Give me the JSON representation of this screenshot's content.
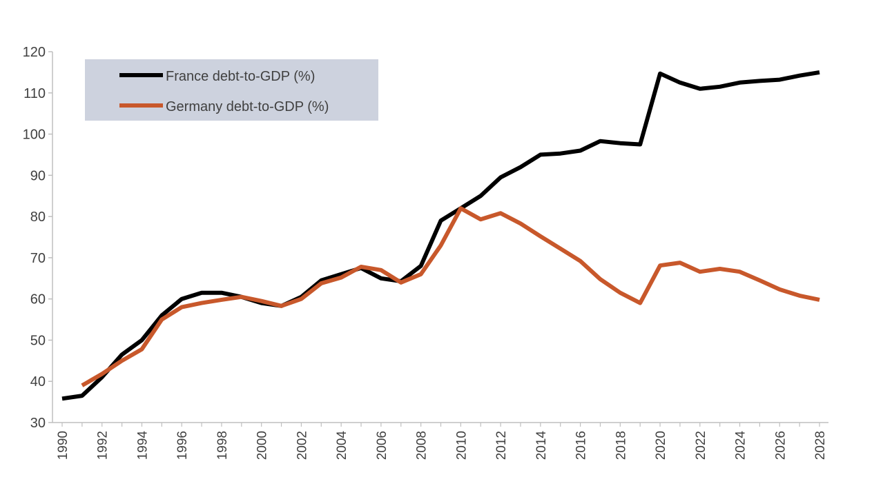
{
  "chart_data": {
    "type": "line",
    "title": "",
    "xlabel": "",
    "ylabel": "",
    "ylim": [
      30,
      120
    ],
    "yticks": [
      30,
      40,
      50,
      60,
      70,
      80,
      90,
      100,
      110,
      120
    ],
    "xlim": [
      1990,
      2028
    ],
    "xticks": [
      "1990",
      "1992",
      "1994",
      "1996",
      "1998",
      "2000",
      "2002",
      "2004",
      "2006",
      "2008",
      "2010",
      "2012",
      "2014",
      "2016",
      "2018",
      "2020",
      "2022",
      "2024",
      "2026",
      "2028"
    ],
    "grid": false,
    "legend": {
      "placement": "top-left",
      "background": "#cdd2de"
    },
    "series": [
      {
        "name": "France debt-to-GDP (%)",
        "color": "#000000",
        "x": [
          1990,
          1991,
          1992,
          1993,
          1994,
          1995,
          1996,
          1997,
          1998,
          1999,
          2000,
          2001,
          2002,
          2003,
          2004,
          2005,
          2006,
          2007,
          2008,
          2009,
          2010,
          2011,
          2012,
          2013,
          2014,
          2015,
          2016,
          2017,
          2018,
          2019,
          2020,
          2021,
          2022,
          2023,
          2024,
          2025,
          2026,
          2027,
          2028
        ],
        "values": [
          35.8,
          36.5,
          41,
          46.5,
          50,
          56,
          60,
          61.5,
          61.5,
          60.5,
          59,
          58.3,
          60.5,
          64.5,
          66,
          67.5,
          65,
          64.3,
          68,
          79,
          82,
          85,
          89.5,
          92,
          95,
          95.3,
          96,
          98.3,
          97.8,
          97.5,
          114.7,
          112.5,
          111,
          111.5,
          112.5,
          112.9,
          113.2,
          114.2,
          115
        ]
      },
      {
        "name": "Germany debt-to-GDP (%)",
        "color": "#c8582b",
        "x": [
          1991,
          1992,
          1993,
          1994,
          1995,
          1996,
          1997,
          1998,
          1999,
          2000,
          2001,
          2002,
          2003,
          2004,
          2005,
          2006,
          2007,
          2008,
          2009,
          2010,
          2011,
          2012,
          2013,
          2014,
          2015,
          2016,
          2017,
          2018,
          2019,
          2020,
          2021,
          2022,
          2023,
          2024,
          2025,
          2026,
          2027,
          2028
        ],
        "values": [
          39,
          41.8,
          45,
          47.8,
          55,
          58,
          59,
          59.8,
          60.5,
          59.5,
          58.3,
          60,
          63.8,
          65.2,
          67.8,
          67,
          64,
          66,
          73,
          82,
          79.3,
          80.8,
          78.3,
          75.2,
          72.2,
          69.2,
          64.8,
          61.5,
          59,
          68.1,
          68.8,
          66.6,
          67.3,
          66.6,
          64.5,
          62.3,
          60.8,
          59.8
        ]
      }
    ]
  }
}
